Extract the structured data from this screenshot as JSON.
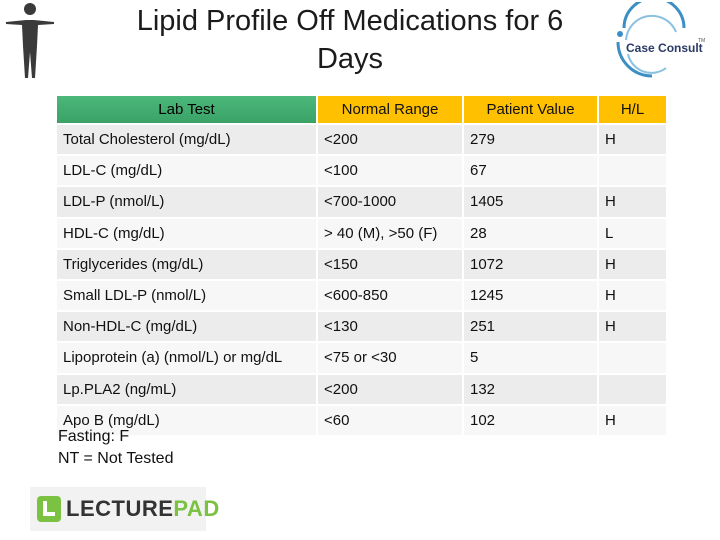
{
  "title": "Lipid Profile Off Medications for 6 Days",
  "logos": {
    "case_consult": "Case Consult",
    "case_consult_mark": "TM",
    "lecturepad_part1": "LECTURE",
    "lecturepad_part2": "PAD"
  },
  "table": {
    "headers": [
      "Lab Test",
      "Normal Range",
      "Patient Value",
      "H/L"
    ],
    "rows": [
      [
        "Total Cholesterol (mg/dL)",
        "<200",
        "279",
        "H"
      ],
      [
        "LDL-C (mg/dL)",
        "<100",
        "67",
        ""
      ],
      [
        "LDL-P (nmol/L)",
        "<700-1000",
        "1405",
        "H"
      ],
      [
        "HDL-C (mg/dL)",
        "> 40 (M), >50 (F)",
        "28",
        "L"
      ],
      [
        "Triglycerides (mg/dL)",
        "<150",
        "1072",
        "H"
      ],
      [
        "Small LDL-P (nmol/L)",
        "<600-850",
        "1245",
        "H"
      ],
      [
        "Non-HDL-C (mg/dL)",
        "<130",
        "251",
        "H"
      ],
      [
        "Lipoprotein (a) (nmol/L) or mg/dL",
        "<75 or <30",
        "5",
        ""
      ],
      [
        "Lp.PLA2 (ng/mL)",
        "<200",
        "132",
        ""
      ],
      [
        "Apo B (mg/dL)",
        "<60",
        "102",
        "H"
      ]
    ]
  },
  "notes": {
    "line1": "Fasting: F",
    "line2": "NT = Not Tested"
  },
  "colors": {
    "header_accent": "#ffc000",
    "header_first": "#3aa267",
    "row_odd": "#ececec",
    "row_even": "#f7f7f7"
  }
}
